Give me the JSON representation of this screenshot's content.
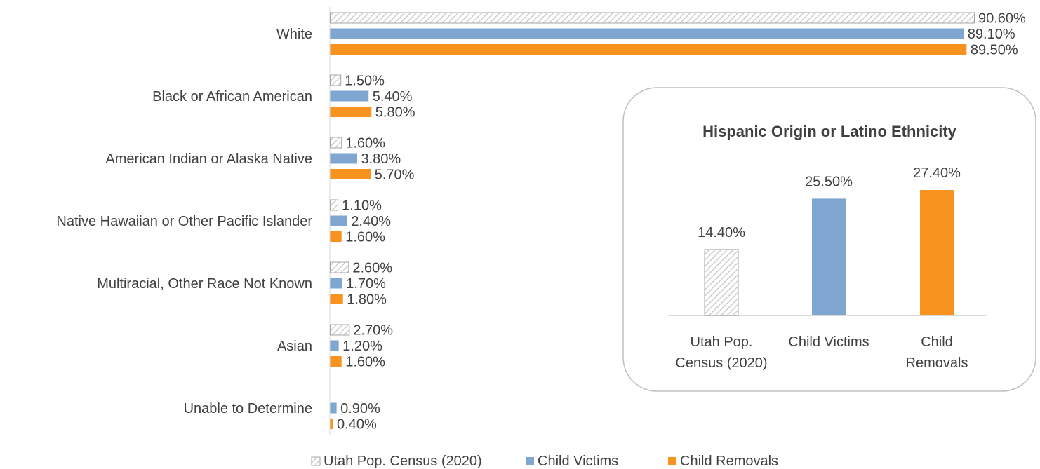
{
  "chart_data": [
    {
      "type": "bar",
      "orientation": "horizontal",
      "categories": [
        "White",
        "Black or African American",
        "American Indian or Alaska Native",
        "Native Hawaiian or Other Pacific Islander",
        "Multiracial, Other Race Not Known",
        "Asian",
        "Unable to Determine"
      ],
      "series": [
        {
          "name": "Utah Pop. Census (2020)",
          "values": [
            90.6,
            1.5,
            1.6,
            1.1,
            2.6,
            2.7,
            null
          ],
          "labels": [
            "90.60%",
            "1.50%",
            "1.60%",
            "1.10%",
            "2.60%",
            "2.70%",
            null
          ]
        },
        {
          "name": "Child Victims",
          "values": [
            89.1,
            5.4,
            3.8,
            2.4,
            1.7,
            1.2,
            0.9
          ],
          "labels": [
            "89.10%",
            "5.40%",
            "3.80%",
            "2.40%",
            "1.70%",
            "1.20%",
            "0.90%"
          ]
        },
        {
          "name": "Child Removals",
          "values": [
            89.5,
            5.8,
            5.7,
            1.6,
            1.8,
            1.6,
            0.4
          ],
          "labels": [
            "89.50%",
            "5.80%",
            "5.70%",
            "1.60%",
            "1.80%",
            "1.60%",
            "0.40%"
          ]
        }
      ],
      "xlim": [
        0,
        90.6
      ],
      "legend": "bottom"
    },
    {
      "type": "bar",
      "title": "Hispanic Origin or Latino Ethnicity",
      "categories": [
        "Utah Pop. Census (2020)",
        "Child Victims",
        "Child Removals"
      ],
      "category_lines": [
        [
          "Utah Pop.",
          "Census (2020)"
        ],
        [
          "Child Victims"
        ],
        [
          "Child",
          "Removals"
        ]
      ],
      "values": [
        14.4,
        25.5,
        27.4
      ],
      "labels": [
        "14.40%",
        "25.50%",
        "27.40%"
      ],
      "ylim": [
        0,
        27.4
      ]
    }
  ],
  "colors": {
    "census_stroke": "#a6a6a6",
    "census_hatch": "#c8c8c8",
    "victims": "#7ea6d0",
    "removals": "#f7931e",
    "text": "#404040",
    "axis": "#d9d9d9"
  }
}
